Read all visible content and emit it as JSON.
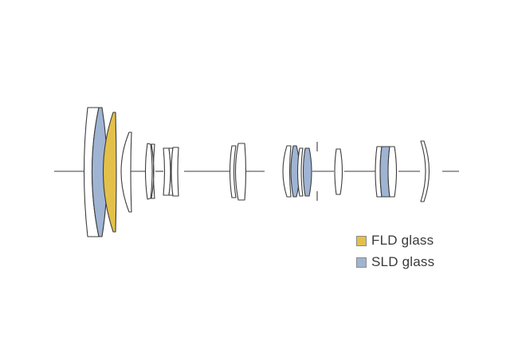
{
  "colors": {
    "line": "#3c3c3c",
    "fld": "#e3c04a",
    "sld": "#9fb4d3",
    "plain": "#ffffff"
  },
  "legend": [
    {
      "id": "fld",
      "label": "FLD glass",
      "color": "#e3c04a"
    },
    {
      "id": "sld",
      "label": "SLD glass",
      "color": "#9fb4d3"
    }
  ],
  "elements": [
    {
      "name": "lens-element-1",
      "glass": "plain"
    },
    {
      "name": "lens-element-2",
      "glass": "sld"
    },
    {
      "name": "lens-element-3",
      "glass": "fld"
    },
    {
      "name": "lens-element-4",
      "glass": "plain"
    },
    {
      "name": "lens-element-5",
      "glass": "plain"
    },
    {
      "name": "lens-element-6",
      "glass": "plain"
    },
    {
      "name": "lens-element-7",
      "glass": "plain"
    },
    {
      "name": "lens-element-8",
      "glass": "plain"
    },
    {
      "name": "lens-element-9",
      "glass": "plain"
    },
    {
      "name": "lens-element-10",
      "glass": "plain"
    },
    {
      "name": "lens-element-11",
      "glass": "plain"
    },
    {
      "name": "lens-element-12",
      "glass": "plain"
    },
    {
      "name": "lens-element-13",
      "glass": "sld"
    },
    {
      "name": "lens-element-14",
      "glass": "plain"
    },
    {
      "name": "lens-element-15",
      "glass": "sld"
    },
    {
      "name": "lens-element-16",
      "glass": "plain"
    },
    {
      "name": "lens-element-17",
      "glass": "plain"
    },
    {
      "name": "lens-element-18",
      "glass": "sld"
    },
    {
      "name": "lens-element-19",
      "glass": "plain"
    },
    {
      "name": "lens-element-20",
      "glass": "plain"
    }
  ]
}
